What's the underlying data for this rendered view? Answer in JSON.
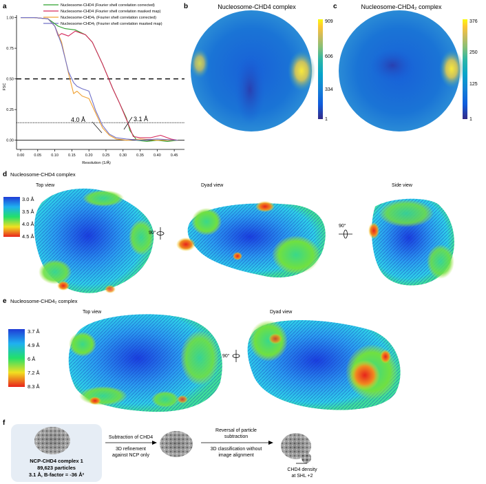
{
  "panels": {
    "a": "a",
    "b": "b",
    "c": "c",
    "d": "d",
    "e": "e",
    "f": "f"
  },
  "fsc": {
    "legend": [
      {
        "label": "Nucleosome-CHD4 (Fourier shell correlation corrected)",
        "color": "#2ca02c"
      },
      {
        "label": "Nucleosome-CHD4 (Fourier shell correlation masked map)",
        "color": "#d6275a"
      },
      {
        "label": "Nucleosome-CHD4₂ (Fourier shell correlation corrected)",
        "color": "#f0a030"
      },
      {
        "label": "Nucleosome-CHD4₂ (Fourier shell correlation masked map)",
        "color": "#7070c8"
      }
    ],
    "annotations": {
      "res1": "4.0 Å",
      "res2": "3.1 Å"
    }
  },
  "chart_data": {
    "type": "line",
    "xlabel": "Resolution (1/Å)",
    "ylabel": "FSC",
    "xlim": [
      0.0,
      0.48
    ],
    "ylim": [
      -0.03,
      1.02
    ],
    "xticks": [
      "0.00",
      "0.05",
      "0.10",
      "0.15",
      "0.20",
      "0.25",
      "0.30",
      "0.35",
      "0.40",
      "0.45"
    ],
    "yticks": [
      "0.00",
      "0.25",
      "0.50",
      "0.75",
      "1.00"
    ],
    "ytick_values": [
      0.0,
      0.25,
      0.5,
      0.75,
      1.0
    ],
    "thresholds": [
      0.5,
      0.143,
      0.0
    ],
    "series": [
      {
        "name": "Nucleosome-CHD4 (Fourier shell correlation corrected)",
        "x": [
          0.0,
          0.04,
          0.08,
          0.11,
          0.13,
          0.16,
          0.19,
          0.21,
          0.24,
          0.27,
          0.29,
          0.31,
          0.32,
          0.34,
          0.37,
          0.4,
          0.43,
          0.46
        ],
        "y": [
          1.0,
          1.0,
          0.99,
          0.93,
          0.91,
          0.9,
          0.86,
          0.8,
          0.62,
          0.42,
          0.3,
          0.18,
          0.08,
          0.0,
          -0.01,
          0.0,
          -0.01,
          0.0
        ]
      },
      {
        "name": "Nucleosome-CHD4 (Fourier shell correlation masked map)",
        "x": [
          0.0,
          0.04,
          0.08,
          0.1,
          0.11,
          0.12,
          0.14,
          0.16,
          0.19,
          0.21,
          0.24,
          0.27,
          0.29,
          0.31,
          0.33,
          0.35,
          0.38,
          0.41,
          0.44,
          0.46
        ],
        "y": [
          1.0,
          1.0,
          0.99,
          0.93,
          0.85,
          0.87,
          0.85,
          0.89,
          0.86,
          0.8,
          0.62,
          0.42,
          0.3,
          0.17,
          0.03,
          0.02,
          0.02,
          0.04,
          0.01,
          0.0
        ]
      },
      {
        "name": "Nucleosome-CHD4₂ (Fourier shell correlation corrected)",
        "x": [
          0.0,
          0.04,
          0.08,
          0.1,
          0.12,
          0.14,
          0.155,
          0.165,
          0.18,
          0.2,
          0.22,
          0.24,
          0.26,
          0.28,
          0.31,
          0.35,
          0.4,
          0.46
        ],
        "y": [
          1.0,
          1.0,
          0.99,
          0.93,
          0.8,
          0.55,
          0.38,
          0.4,
          0.36,
          0.34,
          0.22,
          0.1,
          0.04,
          0.01,
          0.0,
          0.01,
          0.0,
          0.0
        ]
      },
      {
        "name": "Nucleosome-CHD4₂ (Fourier shell correlation masked map)",
        "x": [
          0.0,
          0.04,
          0.08,
          0.1,
          0.12,
          0.14,
          0.155,
          0.165,
          0.18,
          0.2,
          0.22,
          0.24,
          0.26,
          0.28,
          0.31,
          0.35,
          0.4,
          0.46
        ],
        "y": [
          1.0,
          1.0,
          0.99,
          0.93,
          0.78,
          0.56,
          0.47,
          0.44,
          0.42,
          0.4,
          0.24,
          0.12,
          0.05,
          0.02,
          0.01,
          0.0,
          0.01,
          0.0
        ]
      }
    ]
  },
  "angular_b": {
    "title": "Nucleosome-CHD4 complex",
    "colorbar": [
      "909",
      "606",
      "334",
      "1"
    ],
    "max": 909
  },
  "angular_c": {
    "title": "Nucleosome-CHD4₂ complex",
    "colorbar": [
      "376",
      "250",
      "125",
      "1"
    ],
    "max": 376
  },
  "panel_d": {
    "title": "Nucleosome-CHD4 complex",
    "views": [
      "Top view",
      "Dyad view",
      "Side view"
    ],
    "rotations": [
      "90°",
      "90°"
    ],
    "scale": [
      "3.0 Å",
      "3.5 Å",
      "4.0 Å",
      "4.5 Å",
      "5.0 Å"
    ]
  },
  "panel_e": {
    "title": "Nucleosome-CHD4₂ complex",
    "views": [
      "Top view",
      "Dyad view"
    ],
    "rotations": [
      "90°"
    ],
    "scale": [
      "3.7 Å",
      "4.9 Å",
      "6 Å",
      "7.2 Å",
      "8.3 Å"
    ]
  },
  "panel_f": {
    "box_lines": [
      "NCP-CHD4 complex 1",
      "89,623 particles",
      "3.1 Å, B-factor = -36 Å²"
    ],
    "step1_top": "Subtraction of CHD4",
    "step1_bottom": [
      "3D refinement",
      "against NCP only"
    ],
    "step2_top": [
      "Reversal of particle",
      "subtraction"
    ],
    "step2_bottom": [
      "3D classification without",
      "image alignment"
    ],
    "density_label": [
      "CHD4 density",
      "at SHL +2"
    ]
  },
  "colors": {
    "parula": [
      "#352a87",
      "#0f5cdd",
      "#1481d6",
      "#06a4ca",
      "#2eb7a4",
      "#87bf77",
      "#d1bb59",
      "#fec832",
      "#f9fb0e"
    ],
    "jet": [
      "#1f3bd6",
      "#1fb0f0",
      "#22e06a",
      "#f2e020",
      "#e8231c"
    ]
  }
}
